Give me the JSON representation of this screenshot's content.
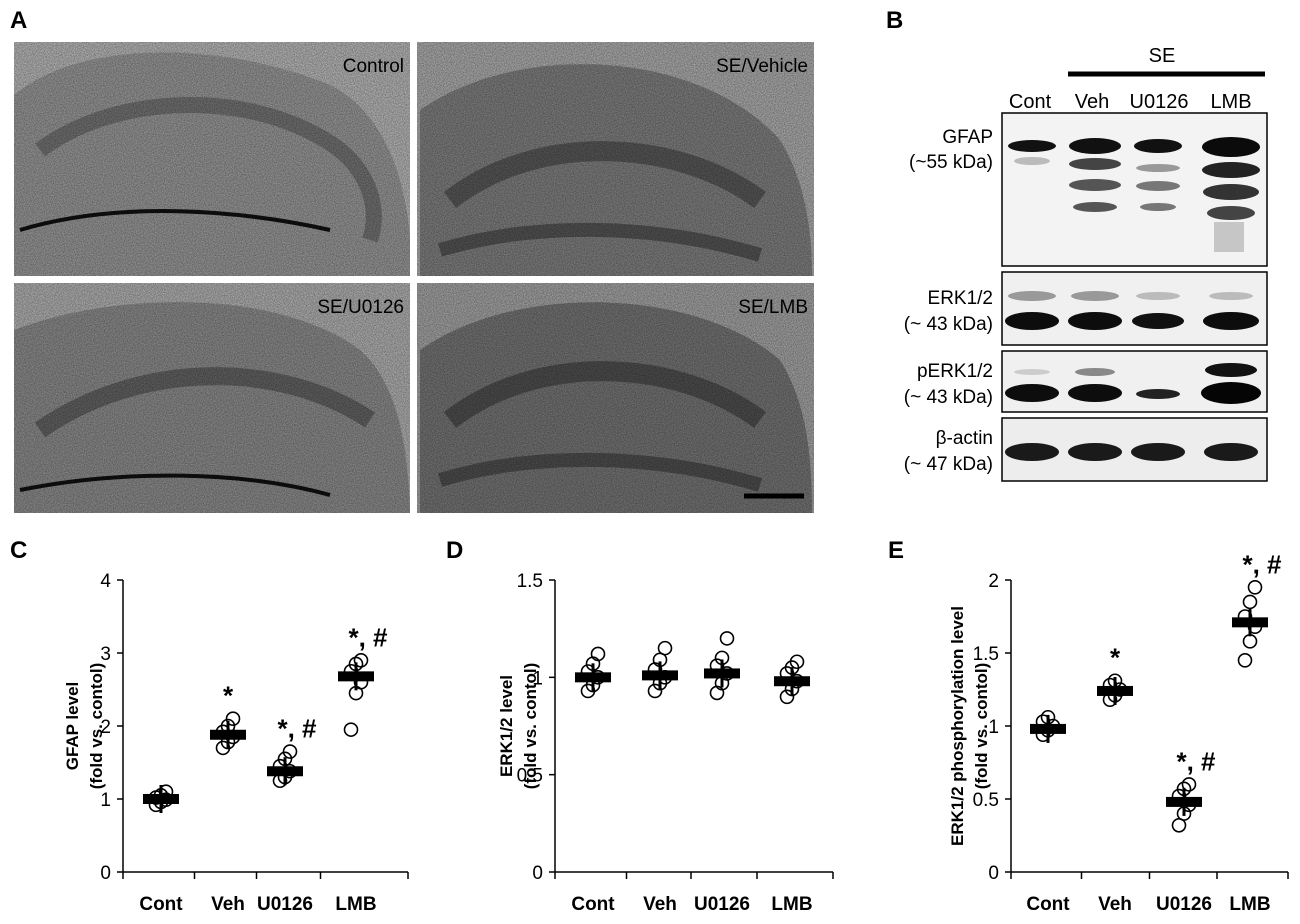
{
  "panel_letters": [
    "A",
    "B",
    "C",
    "D",
    "E"
  ],
  "histology": {
    "images": [
      {
        "label": "Control"
      },
      {
        "label": "SE/Vehicle"
      },
      {
        "label": "SE/U0126"
      },
      {
        "label": "SE/LMB"
      }
    ]
  },
  "western": {
    "group_label": "SE",
    "lanes": [
      "Cont",
      "Veh",
      "U0126",
      "LMB"
    ],
    "blots": [
      {
        "name": "GFAP",
        "size": "(~55 kDa)"
      },
      {
        "name": "ERK1/2",
        "size": "(~ 43 kDa)"
      },
      {
        "name": "pERK1/2",
        "size": "(~ 43 kDa)"
      },
      {
        "name": "β-actin",
        "size": "(~ 47 kDa)"
      }
    ]
  },
  "chart_data": [
    {
      "panel": "C",
      "type": "scatter",
      "categories": [
        "Cont",
        "Veh",
        "U0126",
        "LMB"
      ],
      "means": [
        1.0,
        1.88,
        1.38,
        2.68
      ],
      "points": [
        [
          0.92,
          0.96,
          0.99,
          1.02,
          1.05,
          1.1
        ],
        [
          1.7,
          1.78,
          1.85,
          1.92,
          2.0,
          2.1
        ],
        [
          1.25,
          1.3,
          1.38,
          1.45,
          1.55,
          1.65
        ],
        [
          1.95,
          2.45,
          2.6,
          2.75,
          2.85,
          2.9
        ]
      ],
      "significance": [
        "",
        "*",
        "*, #",
        "*, #"
      ],
      "ylabel": "GFAP level",
      "ylabel2": "(fold vs. contol)",
      "ylim": [
        0,
        4
      ],
      "yticks": [
        "0",
        "1",
        "2",
        "3",
        "4"
      ]
    },
    {
      "panel": "D",
      "type": "scatter",
      "categories": [
        "Cont",
        "Veh",
        "U0126",
        "LMB"
      ],
      "means": [
        1.0,
        1.01,
        1.02,
        0.98
      ],
      "points": [
        [
          0.93,
          0.96,
          1.0,
          1.03,
          1.07,
          1.12
        ],
        [
          0.93,
          0.97,
          1.0,
          1.04,
          1.09,
          1.15
        ],
        [
          0.92,
          0.97,
          1.02,
          1.06,
          1.1,
          1.2
        ],
        [
          0.9,
          0.94,
          0.98,
          1.02,
          1.05,
          1.08
        ]
      ],
      "significance": [
        "",
        "",
        "",
        ""
      ],
      "ylabel": "ERK1/2 level",
      "ylabel2": "(fold vs. contol)",
      "ylim": [
        0,
        1.5
      ],
      "yticks": [
        "0",
        "0.5",
        "1",
        "1.5"
      ]
    },
    {
      "panel": "E",
      "type": "scatter",
      "categories": [
        "Cont",
        "Veh",
        "U0126",
        "LMB"
      ],
      "means": [
        0.98,
        1.24,
        0.48,
        1.71
      ],
      "points": [
        [
          0.94,
          0.97,
          1.0,
          1.03,
          1.06
        ],
        [
          1.18,
          1.21,
          1.25,
          1.28,
          1.31
        ],
        [
          0.32,
          0.4,
          0.46,
          0.52,
          0.57,
          0.6
        ],
        [
          1.45,
          1.58,
          1.68,
          1.75,
          1.85,
          1.95
        ]
      ],
      "significance": [
        "",
        "*",
        "*, #",
        "*, #"
      ],
      "ylabel": "ERK1/2 phosphorylation level",
      "ylabel2": "(fold vs. contol)",
      "ylim": [
        0,
        2
      ],
      "yticks": [
        "0",
        "0.5",
        "1",
        "1.5",
        "2"
      ]
    }
  ]
}
